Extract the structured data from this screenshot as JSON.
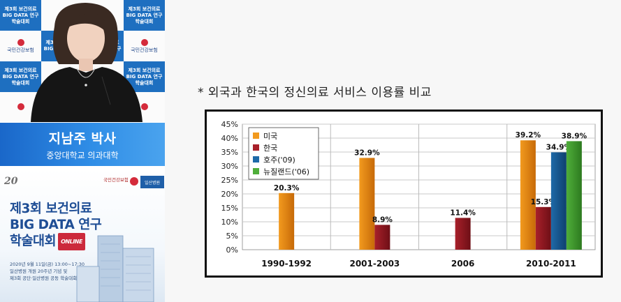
{
  "speaker": {
    "name": "지남주 박사",
    "affiliation": "중앙대학교 의과대학"
  },
  "backdrop": {
    "event_line1": "제3회 보건의료",
    "event_line2": "BIG DATA 연구",
    "event_line3": "학술대회",
    "org_name": "국민건강보험"
  },
  "poster": {
    "anniversary": "20",
    "org": "국민건강보험",
    "hospital": "일산병원",
    "title_line1": "제3회 보건의료",
    "title_line2": "BIG DATA 연구",
    "title_line3": "학술대회",
    "online_badge": "ONLINE",
    "date_line": "2020년 9월 11일(금) 13:00~17:30",
    "info_line1": "일산병원 개원 20주년 기념 및",
    "info_line2": "제3회 공단·일산병원 공동 학술대회"
  },
  "slide": {
    "caption": "* 외국과 한국의 정신의료 서비스 이용률 비교"
  },
  "colors": {
    "usa": "#f29a1e",
    "korea": "#a8202a",
    "australia": "#1e6aa8",
    "newzealand": "#4fae3a",
    "name_bar": "#1f6fd0"
  },
  "chart_data": {
    "type": "bar",
    "categories": [
      "1990-1992",
      "2001-2003",
      "2006",
      "2010-2011"
    ],
    "series": [
      {
        "name": "미국",
        "values": [
          20.3,
          32.9,
          null,
          39.2
        ]
      },
      {
        "name": "한국",
        "values": [
          null,
          8.9,
          11.4,
          15.3
        ]
      },
      {
        "name": "호주('09)",
        "values": [
          null,
          null,
          null,
          34.9
        ]
      },
      {
        "name": "뉴질랜드('06)",
        "values": [
          null,
          null,
          null,
          38.9
        ]
      }
    ],
    "data_labels": [
      [
        "20.3%",
        "32.9%",
        null,
        "39.2%"
      ],
      [
        null,
        "8.9%",
        "11.4%",
        "15.3%"
      ],
      [
        null,
        null,
        null,
        "34.9%"
      ],
      [
        null,
        null,
        null,
        "38.9%"
      ]
    ],
    "y_ticks": [
      "0%",
      "5%",
      "10%",
      "15%",
      "20%",
      "25%",
      "30%",
      "35%",
      "40%",
      "45%"
    ],
    "ylim": [
      0,
      45
    ],
    "grid": true,
    "legend_position": "top-left"
  }
}
